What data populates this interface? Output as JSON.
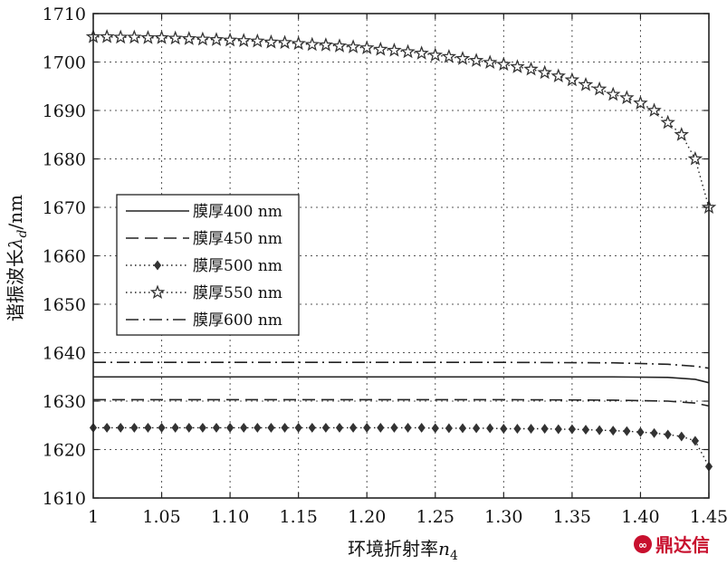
{
  "chart_data": {
    "type": "line",
    "xlabel_main": "环境折射率",
    "xlabel_var": "n",
    "xlabel_sub": "4",
    "ylabel_main": "谐振波长",
    "ylabel_var": "λ",
    "ylabel_sub": "d",
    "ylabel_unit": "/nm",
    "xlim": [
      1.0,
      1.45
    ],
    "ylim": [
      1610,
      1710
    ],
    "x_ticks": [
      1.0,
      1.05,
      1.1,
      1.15,
      1.2,
      1.25,
      1.3,
      1.35,
      1.4,
      1.45
    ],
    "x_tick_labels": [
      "1",
      "1.05",
      "1.10",
      "1.15",
      "1.20",
      "1.25",
      "1.30",
      "1.35",
      "1.40",
      "1.45"
    ],
    "y_ticks": [
      1610,
      1620,
      1630,
      1640,
      1650,
      1660,
      1670,
      1680,
      1690,
      1700,
      1710
    ],
    "y_tick_labels": [
      "1610",
      "1620",
      "1630",
      "1640",
      "1650",
      "1660",
      "1670",
      "1680",
      "1690",
      "1700",
      "1710"
    ],
    "grid": true,
    "legend_position": "left-middle",
    "series": [
      {
        "name": "膜厚400 nm",
        "style": "solid",
        "marker": "none",
        "x": [
          1.0,
          1.1,
          1.2,
          1.3,
          1.38,
          1.42,
          1.44,
          1.45
        ],
        "y": [
          1635,
          1635,
          1635,
          1635,
          1635,
          1634.9,
          1634.5,
          1633.8
        ]
      },
      {
        "name": "膜厚450 nm",
        "style": "dashed",
        "marker": "none",
        "x": [
          1.0,
          1.1,
          1.2,
          1.3,
          1.38,
          1.42,
          1.44,
          1.45
        ],
        "y": [
          1630.3,
          1630.3,
          1630.3,
          1630.3,
          1630.2,
          1630.0,
          1629.6,
          1629.0
        ]
      },
      {
        "name": "膜厚500 nm",
        "style": "dotted",
        "marker": "diamond",
        "x": [
          1.0,
          1.01,
          1.02,
          1.03,
          1.04,
          1.05,
          1.06,
          1.07,
          1.08,
          1.09,
          1.1,
          1.11,
          1.12,
          1.13,
          1.14,
          1.15,
          1.16,
          1.17,
          1.18,
          1.19,
          1.2,
          1.21,
          1.22,
          1.23,
          1.24,
          1.25,
          1.26,
          1.27,
          1.28,
          1.29,
          1.3,
          1.31,
          1.32,
          1.33,
          1.34,
          1.35,
          1.36,
          1.37,
          1.38,
          1.39,
          1.4,
          1.41,
          1.42,
          1.43,
          1.44,
          1.45
        ],
        "y": [
          1624.5,
          1624.5,
          1624.5,
          1624.5,
          1624.5,
          1624.5,
          1624.5,
          1624.5,
          1624.5,
          1624.5,
          1624.5,
          1624.5,
          1624.5,
          1624.5,
          1624.5,
          1624.5,
          1624.5,
          1624.5,
          1624.5,
          1624.5,
          1624.5,
          1624.5,
          1624.5,
          1624.5,
          1624.5,
          1624.4,
          1624.4,
          1624.4,
          1624.4,
          1624.4,
          1624.3,
          1624.3,
          1624.3,
          1624.3,
          1624.2,
          1624.2,
          1624.1,
          1624.0,
          1623.9,
          1623.8,
          1623.6,
          1623.4,
          1623.1,
          1622.7,
          1621.8,
          1616.5
        ]
      },
      {
        "name": "膜厚550 nm",
        "style": "dotted",
        "marker": "star",
        "x": [
          1.0,
          1.01,
          1.02,
          1.03,
          1.04,
          1.05,
          1.06,
          1.07,
          1.08,
          1.09,
          1.1,
          1.11,
          1.12,
          1.13,
          1.14,
          1.15,
          1.16,
          1.17,
          1.18,
          1.19,
          1.2,
          1.21,
          1.22,
          1.23,
          1.24,
          1.25,
          1.26,
          1.27,
          1.28,
          1.29,
          1.3,
          1.31,
          1.32,
          1.33,
          1.34,
          1.35,
          1.36,
          1.37,
          1.38,
          1.39,
          1.4,
          1.41,
          1.42,
          1.43,
          1.44,
          1.45
        ],
        "y": [
          1705.2,
          1705.2,
          1705.1,
          1705.1,
          1705.0,
          1705.0,
          1704.9,
          1704.8,
          1704.7,
          1704.6,
          1704.5,
          1704.4,
          1704.3,
          1704.1,
          1704.0,
          1703.8,
          1703.6,
          1703.5,
          1703.3,
          1703.1,
          1702.9,
          1702.6,
          1702.4,
          1702.1,
          1701.8,
          1701.4,
          1701.1,
          1700.7,
          1700.3,
          1699.9,
          1699.5,
          1699.0,
          1698.5,
          1697.8,
          1697.1,
          1696.3,
          1695.3,
          1694.4,
          1693.3,
          1692.6,
          1691.5,
          1690.0,
          1687.5,
          1685.0,
          1680.0,
          1670.0
        ]
      },
      {
        "name": "膜厚600 nm",
        "style": "dashdot",
        "marker": "none",
        "x": [
          1.0,
          1.1,
          1.2,
          1.3,
          1.38,
          1.42,
          1.44,
          1.45
        ],
        "y": [
          1638,
          1638,
          1638,
          1638,
          1637.9,
          1637.6,
          1637.2,
          1636.8
        ]
      }
    ]
  },
  "watermark": {
    "logo_text": "鼎达信"
  }
}
